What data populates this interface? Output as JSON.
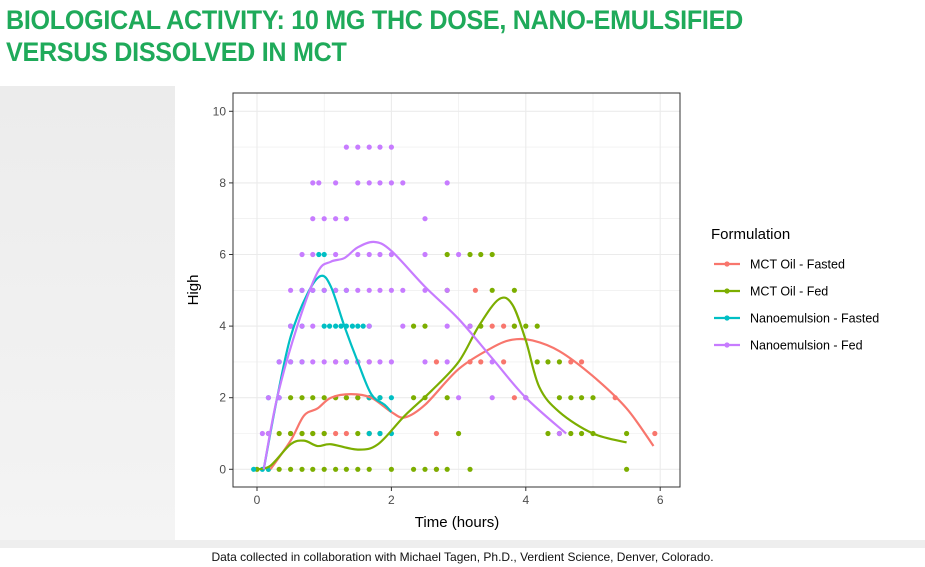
{
  "slide": {
    "title_line1": "BIOLOGICAL ACTIVITY: 10 MG THC DOSE, NANO-EMULSIFIED",
    "title_line2": "VERSUS DISSOLVED IN MCT",
    "caption": "Data collected in collaboration with Michael Tagen, Ph.D., Verdient Science, Denver, Colorado."
  },
  "chart_data": {
    "type": "scatter",
    "title": "",
    "xlabel": "Time (hours)",
    "ylabel": "High",
    "xlim": [
      -0.2,
      6.2
    ],
    "ylim": [
      -0.5,
      10.5
    ],
    "xticks": [
      "0",
      "2",
      "4",
      "6"
    ],
    "yticks": [
      "0",
      "2",
      "4",
      "6",
      "8",
      "10"
    ],
    "grid": true,
    "legend": {
      "title": "Formulation",
      "placement": "right"
    },
    "series": [
      {
        "name": "MCT Oil - Fasted",
        "color": "#F8766D",
        "points": [
          {
            "y": 0,
            "x": [
              2.67
            ]
          },
          {
            "y": 1,
            "x": [
              0.5,
              0.67,
              0.83,
              1.0,
              1.17,
              1.33,
              1.67,
              2.67,
              5.92
            ]
          },
          {
            "y": 2,
            "x": [
              1.17,
              1.33,
              1.5,
              1.67,
              3.83,
              5.33
            ]
          },
          {
            "y": 3,
            "x": [
              1.17,
              1.33,
              1.5,
              1.67,
              2.67,
              3.17,
              3.33,
              3.67,
              4.67,
              4.83
            ]
          },
          {
            "y": 4,
            "x": [
              3.5,
              3.67,
              3.83
            ]
          },
          {
            "y": 5,
            "x": [
              3.25
            ]
          }
        ],
        "smooth": [
          [
            0.2,
            0
          ],
          [
            0.5,
            0.8
          ],
          [
            0.7,
            1.5
          ],
          [
            0.9,
            1.7
          ],
          [
            1.1,
            2.0
          ],
          [
            1.4,
            2.1
          ],
          [
            1.7,
            2.0
          ],
          [
            2.0,
            1.6
          ],
          [
            2.2,
            1.45
          ],
          [
            2.5,
            1.8
          ],
          [
            3.0,
            2.8
          ],
          [
            3.5,
            3.4
          ],
          [
            3.8,
            3.62
          ],
          [
            4.1,
            3.6
          ],
          [
            4.5,
            3.3
          ],
          [
            5.0,
            2.6
          ],
          [
            5.5,
            1.7
          ],
          [
            5.9,
            0.65
          ]
        ]
      },
      {
        "name": "MCT Oil - Fed",
        "color": "#7CAE00",
        "points": [
          {
            "y": 0,
            "x": [
              0,
              0.17,
              0.33,
              0.5,
              0.67,
              0.83,
              1.0,
              1.17,
              1.33,
              1.5,
              1.67,
              2.0,
              2.33,
              2.5,
              2.67,
              2.83,
              3.17,
              5.5
            ]
          },
          {
            "y": 1,
            "x": [
              0.17,
              0.33,
              0.5,
              0.67,
              0.83,
              1.0,
              1.5,
              1.67,
              1.83,
              3.0,
              4.33,
              4.5,
              4.67,
              4.83,
              5.0,
              5.5
            ]
          },
          {
            "y": 2,
            "x": [
              0.5,
              0.67,
              0.83,
              1.0,
              1.17,
              1.33,
              1.5,
              1.67,
              1.83,
              2.33,
              2.5,
              2.83,
              4.0,
              4.5,
              4.67,
              4.83,
              5.0
            ]
          },
          {
            "y": 3,
            "x": [
              4.17,
              4.33,
              4.5
            ]
          },
          {
            "y": 4,
            "x": [
              2.33,
              2.5,
              3.17,
              3.33,
              3.83,
              4.0,
              4.17
            ]
          },
          {
            "y": 5,
            "x": [
              2.83,
              3.5,
              3.83
            ]
          },
          {
            "y": 6,
            "x": [
              2.83,
              3.17,
              3.33,
              3.5
            ]
          }
        ],
        "smooth": [
          [
            0,
            0
          ],
          [
            0.2,
            0.1
          ],
          [
            0.5,
            0.7
          ],
          [
            0.7,
            0.8
          ],
          [
            0.9,
            0.65
          ],
          [
            1.1,
            0.7
          ],
          [
            1.5,
            0.55
          ],
          [
            1.8,
            0.7
          ],
          [
            2.2,
            1.5
          ],
          [
            2.6,
            2.2
          ],
          [
            3.0,
            3.0
          ],
          [
            3.3,
            4.0
          ],
          [
            3.6,
            4.75
          ],
          [
            3.8,
            4.6
          ],
          [
            4.0,
            3.6
          ],
          [
            4.2,
            2.3
          ],
          [
            4.5,
            1.6
          ],
          [
            5.0,
            1.0
          ],
          [
            5.5,
            0.75
          ]
        ]
      },
      {
        "name": "Nanoemulsion - Fasted",
        "color": "#00BFC4",
        "points": [
          {
            "y": 0,
            "x": [
              -0.05,
              0.08,
              0.17
            ]
          },
          {
            "y": 1,
            "x": [
              1.67,
              1.83,
              2.0
            ]
          },
          {
            "y": 2,
            "x": [
              0.17,
              0.33,
              1.67,
              1.83,
              2.0
            ]
          },
          {
            "y": 3,
            "x": [
              0.33,
              0.5,
              0.67,
              1.33,
              1.5
            ]
          },
          {
            "y": 4,
            "x": [
              0.5,
              0.67,
              1.0,
              1.08,
              1.17,
              1.25,
              1.33,
              1.42,
              1.5,
              1.58,
              1.67
            ]
          },
          {
            "y": 5,
            "x": [
              0.67,
              0.83,
              1.0,
              1.17,
              1.33
            ]
          },
          {
            "y": 6,
            "x": [
              0.92,
              1.0
            ]
          }
        ],
        "smooth": [
          [
            0.1,
            0
          ],
          [
            0.3,
            2.0
          ],
          [
            0.5,
            3.7
          ],
          [
            0.75,
            4.9
          ],
          [
            0.95,
            5.4
          ],
          [
            1.1,
            5.1
          ],
          [
            1.3,
            4.0
          ],
          [
            1.5,
            3.0
          ],
          [
            1.7,
            2.1
          ],
          [
            1.9,
            1.8
          ],
          [
            2.0,
            1.6
          ]
        ]
      },
      {
        "name": "Nanoemulsion - Fed",
        "color": "#C77CFF",
        "points": [
          {
            "y": 1,
            "x": [
              0.08,
              0.17,
              4.5
            ]
          },
          {
            "y": 2,
            "x": [
              0.17,
              0.33,
              3.0,
              3.5,
              4.0
            ]
          },
          {
            "y": 3,
            "x": [
              0.33,
              0.5,
              0.67,
              0.83,
              1.0,
              1.17,
              1.33,
              1.5,
              1.67,
              1.83,
              2.0,
              2.5,
              2.83,
              3.5
            ]
          },
          {
            "y": 4,
            "x": [
              0.5,
              0.67,
              0.83,
              1.67,
              2.17,
              2.83,
              3.17
            ]
          },
          {
            "y": 5,
            "x": [
              0.5,
              0.67,
              0.83,
              1.0,
              1.17,
              1.33,
              1.5,
              1.67,
              1.83,
              2.0,
              2.17,
              2.5,
              2.83
            ]
          },
          {
            "y": 6,
            "x": [
              0.67,
              0.83,
              1.17,
              1.5,
              1.67,
              1.83,
              2.0,
              2.5,
              3.0
            ]
          },
          {
            "y": 7,
            "x": [
              0.83,
              1.0,
              1.17,
              1.33,
              2.5
            ]
          },
          {
            "y": 8,
            "x": [
              0.83,
              0.92,
              1.17,
              1.5,
              1.67,
              1.83,
              2.0,
              2.17,
              2.83
            ]
          },
          {
            "y": 9,
            "x": [
              1.33,
              1.5,
              1.67,
              1.83,
              2.0
            ]
          }
        ],
        "smooth": [
          [
            0.1,
            0
          ],
          [
            0.3,
            2.0
          ],
          [
            0.6,
            4.0
          ],
          [
            0.9,
            5.5
          ],
          [
            1.1,
            5.8
          ],
          [
            1.3,
            5.9
          ],
          [
            1.5,
            6.2
          ],
          [
            1.75,
            6.35
          ],
          [
            2.0,
            6.1
          ],
          [
            2.5,
            5.1
          ],
          [
            3.0,
            4.2
          ],
          [
            3.5,
            3.1
          ],
          [
            4.0,
            2.0
          ],
          [
            4.6,
            1.0
          ]
        ]
      }
    ]
  }
}
